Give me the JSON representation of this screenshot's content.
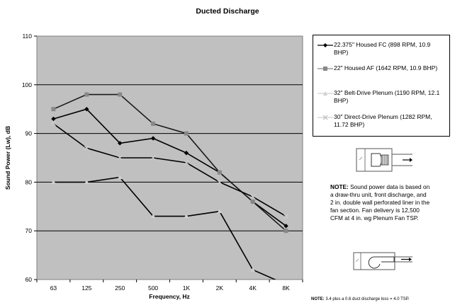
{
  "chart_data": {
    "type": "line",
    "title": "Ducted Discharge",
    "xlabel": "Frequency, Hz",
    "ylabel": "Sound Power (Lw), dB",
    "categories": [
      "63",
      "125",
      "250",
      "500",
      "1K",
      "2K",
      "4K",
      "8K"
    ],
    "ylim": [
      60,
      110
    ],
    "yticks": [
      60,
      70,
      80,
      90,
      100,
      110
    ],
    "grid": true,
    "legend_position": "right",
    "series": [
      {
        "name": "22.375\" Housed FC (898 RPM, 10.9 BHP)",
        "marker": "diamond",
        "color": "#000000",
        "values": [
          93,
          95,
          88,
          89,
          86,
          82,
          76,
          71
        ]
      },
      {
        "name": "22\" Housed AF (1642 RPM, 10.9 BHP)",
        "marker": "square",
        "color": "#888888",
        "values": [
          95,
          98,
          98,
          92,
          90,
          82,
          76,
          70
        ]
      },
      {
        "name": "32\" Belt-Drive Plenum (1190 RPM, 12.1 BHP)",
        "marker": "triangle",
        "color": "#d0d0d0",
        "values": [
          80,
          80,
          81,
          73,
          73,
          74,
          62,
          59
        ]
      },
      {
        "name": "30\" Direct-Drive Plenum (1282 RPM, 11.72 BHP)",
        "marker": "x",
        "color": "#d0d0d0",
        "values": [
          92,
          87,
          85,
          85,
          84,
          80,
          77,
          73
        ]
      }
    ]
  },
  "note": {
    "label": "NOTE:",
    "text": " Sound power data is based on a draw-thru unit, front discharge, and 2 in. double wall perforated liner in the fan section. Fan delivery is 12,500 CFM at 4 in. wg Plenum Fan TSP."
  },
  "bottom_note": {
    "label": "NOTE:",
    "text": " 3.4 plus a 0.6 duct discharge loss = 4.0 TSP."
  }
}
